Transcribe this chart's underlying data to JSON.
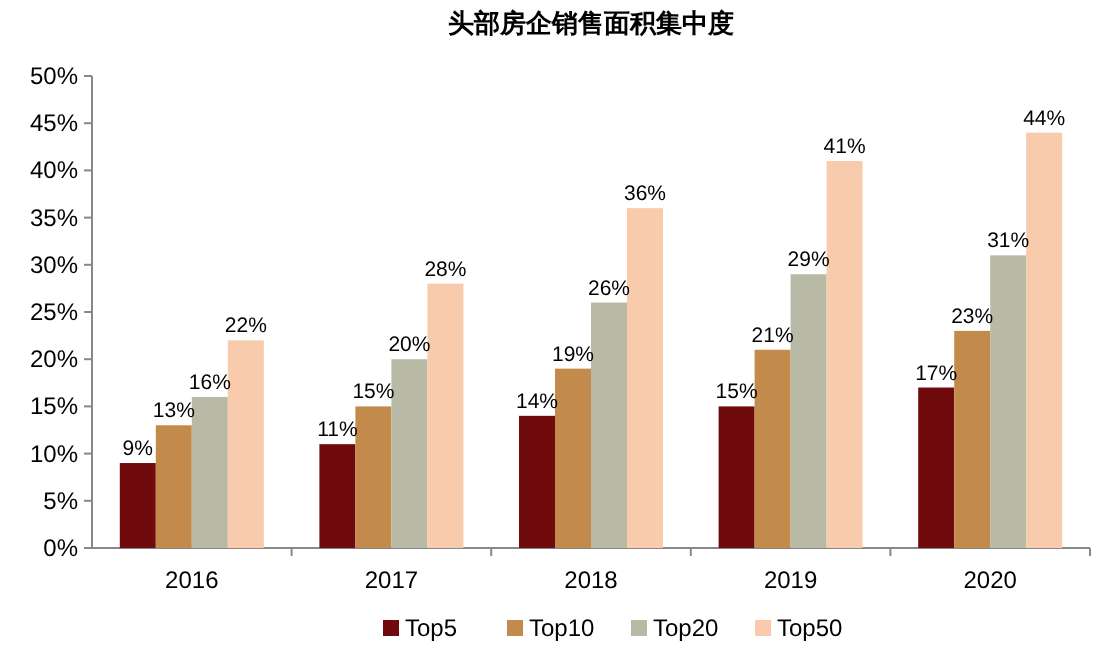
{
  "chart_data": {
    "type": "bar",
    "title": "头部房企销售面积集中度",
    "categories": [
      "2016",
      "2017",
      "2018",
      "2019",
      "2020"
    ],
    "series": [
      {
        "name": "Top5",
        "color": "#700b0d",
        "values": [
          9,
          11,
          14,
          15,
          17
        ],
        "value_labels": [
          "9%",
          "11%",
          "14%",
          "15%",
          "17%"
        ]
      },
      {
        "name": "Top10",
        "color": "#c28a4b",
        "values": [
          13,
          15,
          19,
          21,
          23
        ],
        "value_labels": [
          "13%",
          "15%",
          "19%",
          "21%",
          "23%"
        ]
      },
      {
        "name": "Top20",
        "color": "#b8baa6",
        "values": [
          16,
          20,
          26,
          29,
          31
        ],
        "value_labels": [
          "16%",
          "20%",
          "26%",
          "29%",
          "31%"
        ]
      },
      {
        "name": "Top50",
        "color": "#f8cbad",
        "values": [
          22,
          28,
          36,
          41,
          44
        ],
        "value_labels": [
          "22%",
          "28%",
          "36%",
          "41%",
          "44%"
        ]
      }
    ],
    "ylim": [
      0,
      50
    ],
    "yticks": [
      {
        "value": 0,
        "label": "0%"
      },
      {
        "value": 5,
        "label": "5%"
      },
      {
        "value": 10,
        "label": "10%"
      },
      {
        "value": 15,
        "label": "15%"
      },
      {
        "value": 20,
        "label": "20%"
      },
      {
        "value": 25,
        "label": "25%"
      },
      {
        "value": 30,
        "label": "30%"
      },
      {
        "value": 35,
        "label": "35%"
      },
      {
        "value": 40,
        "label": "40%"
      },
      {
        "value": 45,
        "label": "45%"
      },
      {
        "value": 50,
        "label": "50%"
      }
    ],
    "legend": "bottom"
  }
}
